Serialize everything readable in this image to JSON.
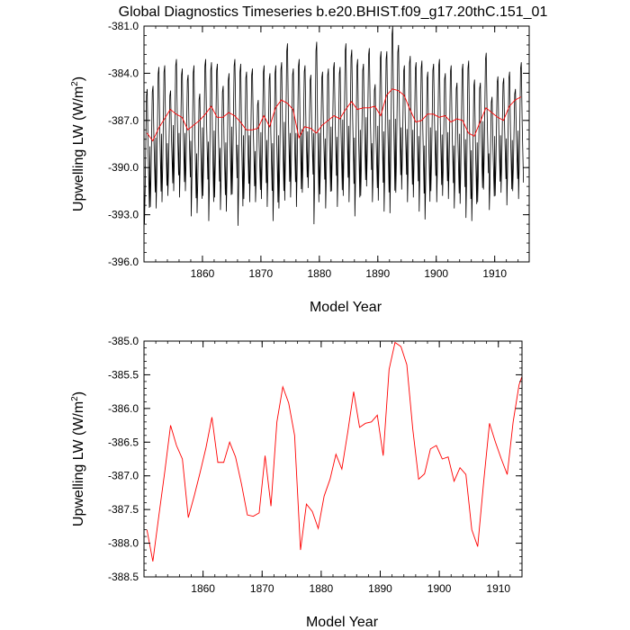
{
  "title": "Global Diagnostics Timeseries b.e20.BHIST.f09_g17.20thC.151_01",
  "colors": {
    "monthly": "#000000",
    "annual": "#ff0000",
    "axis": "#000000"
  },
  "chart_data": [
    {
      "type": "line",
      "ylabel_main": "Upwelling LW (W/m",
      "ylabel_sup": "2",
      "ylabel_close": ")",
      "xlabel": "Model Year",
      "xlim": [
        1850,
        1915.9
      ],
      "ylim": [
        -396.0,
        -381.0
      ],
      "yticks": [
        "-381.0",
        "-384.0",
        "-387.0",
        "-390.0",
        "-393.0",
        "-396.0"
      ],
      "ytick_values": [
        -381.0,
        -384.0,
        -387.0,
        -390.0,
        -393.0,
        -396.0
      ],
      "xticks": [
        "1860",
        "1870",
        "1880",
        "1890",
        "1900",
        "1910"
      ],
      "xtick_values": [
        1860,
        1870,
        1880,
        1890,
        1900,
        1910
      ],
      "series": [
        {
          "style": "monthly",
          "x_start": 1850,
          "peaks": [
            -385.0,
            -384.8,
            -383.6,
            -383.5,
            -385.1,
            -383.1,
            -383.7,
            -384.1,
            -383.5,
            -385.3,
            -383.1,
            -383.3,
            -383.4,
            -384.8,
            -384.0,
            -383.1,
            -383.4,
            -383.9,
            -383.7,
            -385.7,
            -383.5,
            -384.0,
            -383.5,
            -383.3,
            -382.1,
            -383.7,
            -383.1,
            -383.5,
            -384.1,
            -382.0,
            -383.9,
            -383.7,
            -383.3,
            -383.6,
            -382.1,
            -382.5,
            -383.1,
            -383.4,
            -382.4,
            -384.7,
            -382.6,
            -382.6,
            -381.0,
            -382.2,
            -383.5,
            -382.9,
            -383.3,
            -383.2,
            -383.9,
            -383.4,
            -383.1,
            -384.0,
            -383.5,
            -384.6,
            -383.4,
            -383.2,
            -384.4,
            -384.6,
            -382.7,
            -385.5,
            -384.2,
            -384.3,
            -383.9,
            -385.0,
            -383.3
          ],
          "troughs": [
            -393.6,
            -392.5,
            -392.6,
            -392.2,
            -391.8,
            -391.5,
            -391.9,
            -391.5,
            -393.1,
            -392.9,
            -391.8,
            -393.4,
            -391.9,
            -392.7,
            -392.8,
            -391.7,
            -393.7,
            -392.0,
            -392.2,
            -392.2,
            -392.0,
            -392.5,
            -393.4,
            -392.6,
            -392.1,
            -391.9,
            -392.5,
            -391.6,
            -391.3,
            -393.6,
            -391.7,
            -392.6,
            -391.5,
            -392.5,
            -391.8,
            -392.2,
            -393.1,
            -391.8,
            -391.2,
            -392.2,
            -392.1,
            -392.8,
            -392.9,
            -391.6,
            -391.4,
            -392.2,
            -391.9,
            -392.8,
            -393.3,
            -391.5,
            -392.2,
            -391.8,
            -392.0,
            -392.6,
            -392.3,
            -393.2,
            -393.4,
            -392.2,
            -391.4,
            -392.7,
            -391.8,
            -391.6,
            -392.4,
            -391.5,
            -392.0
          ]
        },
        {
          "style": "annual",
          "x": [
            1850,
            1851,
            1852,
            1853,
            1854,
            1855,
            1856,
            1857,
            1858,
            1859,
            1860,
            1861,
            1862,
            1863,
            1864,
            1865,
            1866,
            1867,
            1868,
            1869,
            1870,
            1871,
            1872,
            1873,
            1874,
            1875,
            1876,
            1877,
            1878,
            1879,
            1880,
            1881,
            1882,
            1883,
            1884,
            1885,
            1886,
            1887,
            1888,
            1889,
            1890,
            1891,
            1892,
            1893,
            1894,
            1895,
            1896,
            1897,
            1898,
            1899,
            1900,
            1901,
            1902,
            1903,
            1904,
            1905,
            1906,
            1907,
            1908,
            1909,
            1910,
            1911,
            1912,
            1913,
            1914
          ],
          "values": [
            -387.8,
            -388.3,
            -387.5,
            -386.9,
            -386.3,
            -386.6,
            -386.8,
            -387.6,
            -387.3,
            -387.0,
            -386.6,
            -386.1,
            -386.8,
            -386.8,
            -386.5,
            -386.7,
            -387.1,
            -387.6,
            -387.6,
            -387.5,
            -386.7,
            -387.4,
            -386.2,
            -385.7,
            -385.9,
            -386.3,
            -388.1,
            -387.4,
            -387.5,
            -387.8,
            -387.3,
            -387.0,
            -386.7,
            -386.9,
            -386.3,
            -385.8,
            -386.3,
            -386.2,
            -386.2,
            -386.1,
            -386.7,
            -385.4,
            -385.0,
            -385.1,
            -385.4,
            -386.3,
            -387.1,
            -387.0,
            -386.6,
            -386.6,
            -386.8,
            -386.7,
            -387.1,
            -386.9,
            -387.0,
            -387.8,
            -388.0,
            -387.1,
            -386.2,
            -386.5,
            -386.8,
            -387.0,
            -386.1,
            -385.7,
            -385.5
          ]
        }
      ]
    },
    {
      "type": "line",
      "ylabel_main": "Upwelling LW (W/m",
      "ylabel_sup": "2",
      "ylabel_close": ")",
      "xlabel": "Model Year",
      "xlim": [
        1850,
        1914
      ],
      "ylim": [
        -388.5,
        -385.0
      ],
      "yticks": [
        "-385.0",
        "-385.5",
        "-386.0",
        "-386.5",
        "-387.0",
        "-387.5",
        "-388.0",
        "-388.5"
      ],
      "ytick_values": [
        -385.0,
        -385.5,
        -386.0,
        -386.5,
        -387.0,
        -387.5,
        -388.0,
        -388.5
      ],
      "xticks": [
        "1860",
        "1870",
        "1880",
        "1890",
        "1900",
        "1910"
      ],
      "xtick_values": [
        1860,
        1870,
        1880,
        1890,
        1900,
        1910
      ],
      "series": [
        {
          "style": "annual",
          "x": [
            1850,
            1851,
            1852,
            1853,
            1854,
            1855,
            1856,
            1857,
            1858,
            1859,
            1860,
            1861,
            1862,
            1863,
            1864,
            1865,
            1866,
            1867,
            1868,
            1869,
            1870,
            1871,
            1872,
            1873,
            1874,
            1875,
            1876,
            1877,
            1878,
            1879,
            1880,
            1881,
            1882,
            1883,
            1884,
            1885,
            1886,
            1887,
            1888,
            1889,
            1890,
            1891,
            1892,
            1893,
            1894,
            1895,
            1896,
            1897,
            1898,
            1899,
            1900,
            1901,
            1902,
            1903,
            1904,
            1905,
            1906,
            1907,
            1908,
            1909,
            1910,
            1911,
            1912,
            1913,
            1914
          ],
          "values": [
            -387.8,
            -388.27,
            -387.6,
            -386.95,
            -386.25,
            -386.55,
            -386.75,
            -387.62,
            -387.3,
            -386.95,
            -386.58,
            -386.13,
            -386.8,
            -386.8,
            -386.5,
            -386.72,
            -387.12,
            -387.58,
            -387.6,
            -387.55,
            -386.7,
            -387.45,
            -386.2,
            -385.68,
            -385.92,
            -386.4,
            -388.1,
            -387.42,
            -387.53,
            -387.78,
            -387.3,
            -387.05,
            -386.68,
            -386.9,
            -386.35,
            -385.75,
            -386.28,
            -386.22,
            -386.2,
            -386.1,
            -386.7,
            -385.42,
            -385.02,
            -385.08,
            -385.35,
            -386.3,
            -387.05,
            -386.97,
            -386.6,
            -386.55,
            -386.75,
            -386.72,
            -387.08,
            -386.88,
            -386.98,
            -387.8,
            -388.05,
            -387.1,
            -386.22,
            -386.5,
            -386.75,
            -386.98,
            -386.2,
            -385.65,
            -385.4
          ]
        }
      ]
    }
  ]
}
